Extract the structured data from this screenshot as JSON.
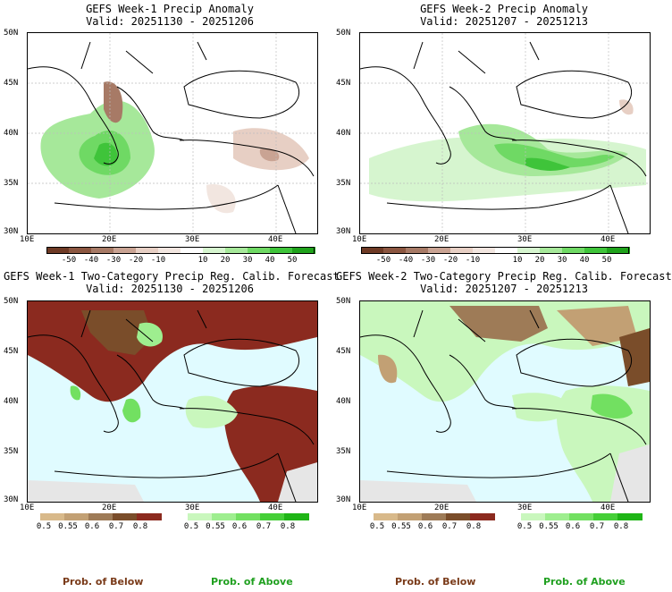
{
  "panels": {
    "p1": {
      "title": "GEFS Week-1 Precip Anomaly",
      "valid": "Valid: 20251130 - 20251206"
    },
    "p2": {
      "title": "GEFS Week-2 Precip Anomaly",
      "valid": "Valid: 20251207 - 20251213"
    },
    "p3": {
      "title": "GEFS Week-1 Two-Category Precip Reg. Calib. Forecast",
      "valid": "Valid: 20251130 - 20251206"
    },
    "p4": {
      "title": "GEFS Week-2 Two-Category Precip Reg. Calib. Forecast",
      "valid": "Valid: 20251207 - 20251213"
    }
  },
  "axes": {
    "lat_labels": [
      "50N",
      "45N",
      "40N",
      "35N",
      "30N"
    ],
    "lon_labels": [
      "10E",
      "20E",
      "30E",
      "40E"
    ]
  },
  "anomaly_colorbar": {
    "ticks": [
      "-50",
      "-40",
      "-30",
      "-20",
      "-10",
      "10",
      "20",
      "30",
      "40",
      "50"
    ],
    "colors": [
      "#6e3a25",
      "#8b5640",
      "#a77a66",
      "#c9a393",
      "#e7cfc4",
      "#f2e6e0",
      "#ffffff",
      "#d6f5cf",
      "#a6e89a",
      "#6fd964",
      "#3fc43a",
      "#1fa21b"
    ]
  },
  "prob_colorbar": {
    "below_ticks": [
      "0.5",
      "0.55",
      "0.6",
      "0.7",
      "0.8"
    ],
    "above_ticks": [
      "0.5",
      "0.55",
      "0.6",
      "0.7",
      "0.8"
    ],
    "below_colors": [
      "#d8b98a",
      "#c2a074",
      "#9e7b57",
      "#7a4d2a",
      "#8b2a1f"
    ],
    "above_colors": [
      "#c9f7bd",
      "#9eee8f",
      "#72e061",
      "#45cf37",
      "#1fb516"
    ]
  },
  "legend": {
    "below": "Prob. of Below",
    "above": "Prob. of Above",
    "below_color": "#7a3b1a",
    "above_color": "#20a020"
  }
}
